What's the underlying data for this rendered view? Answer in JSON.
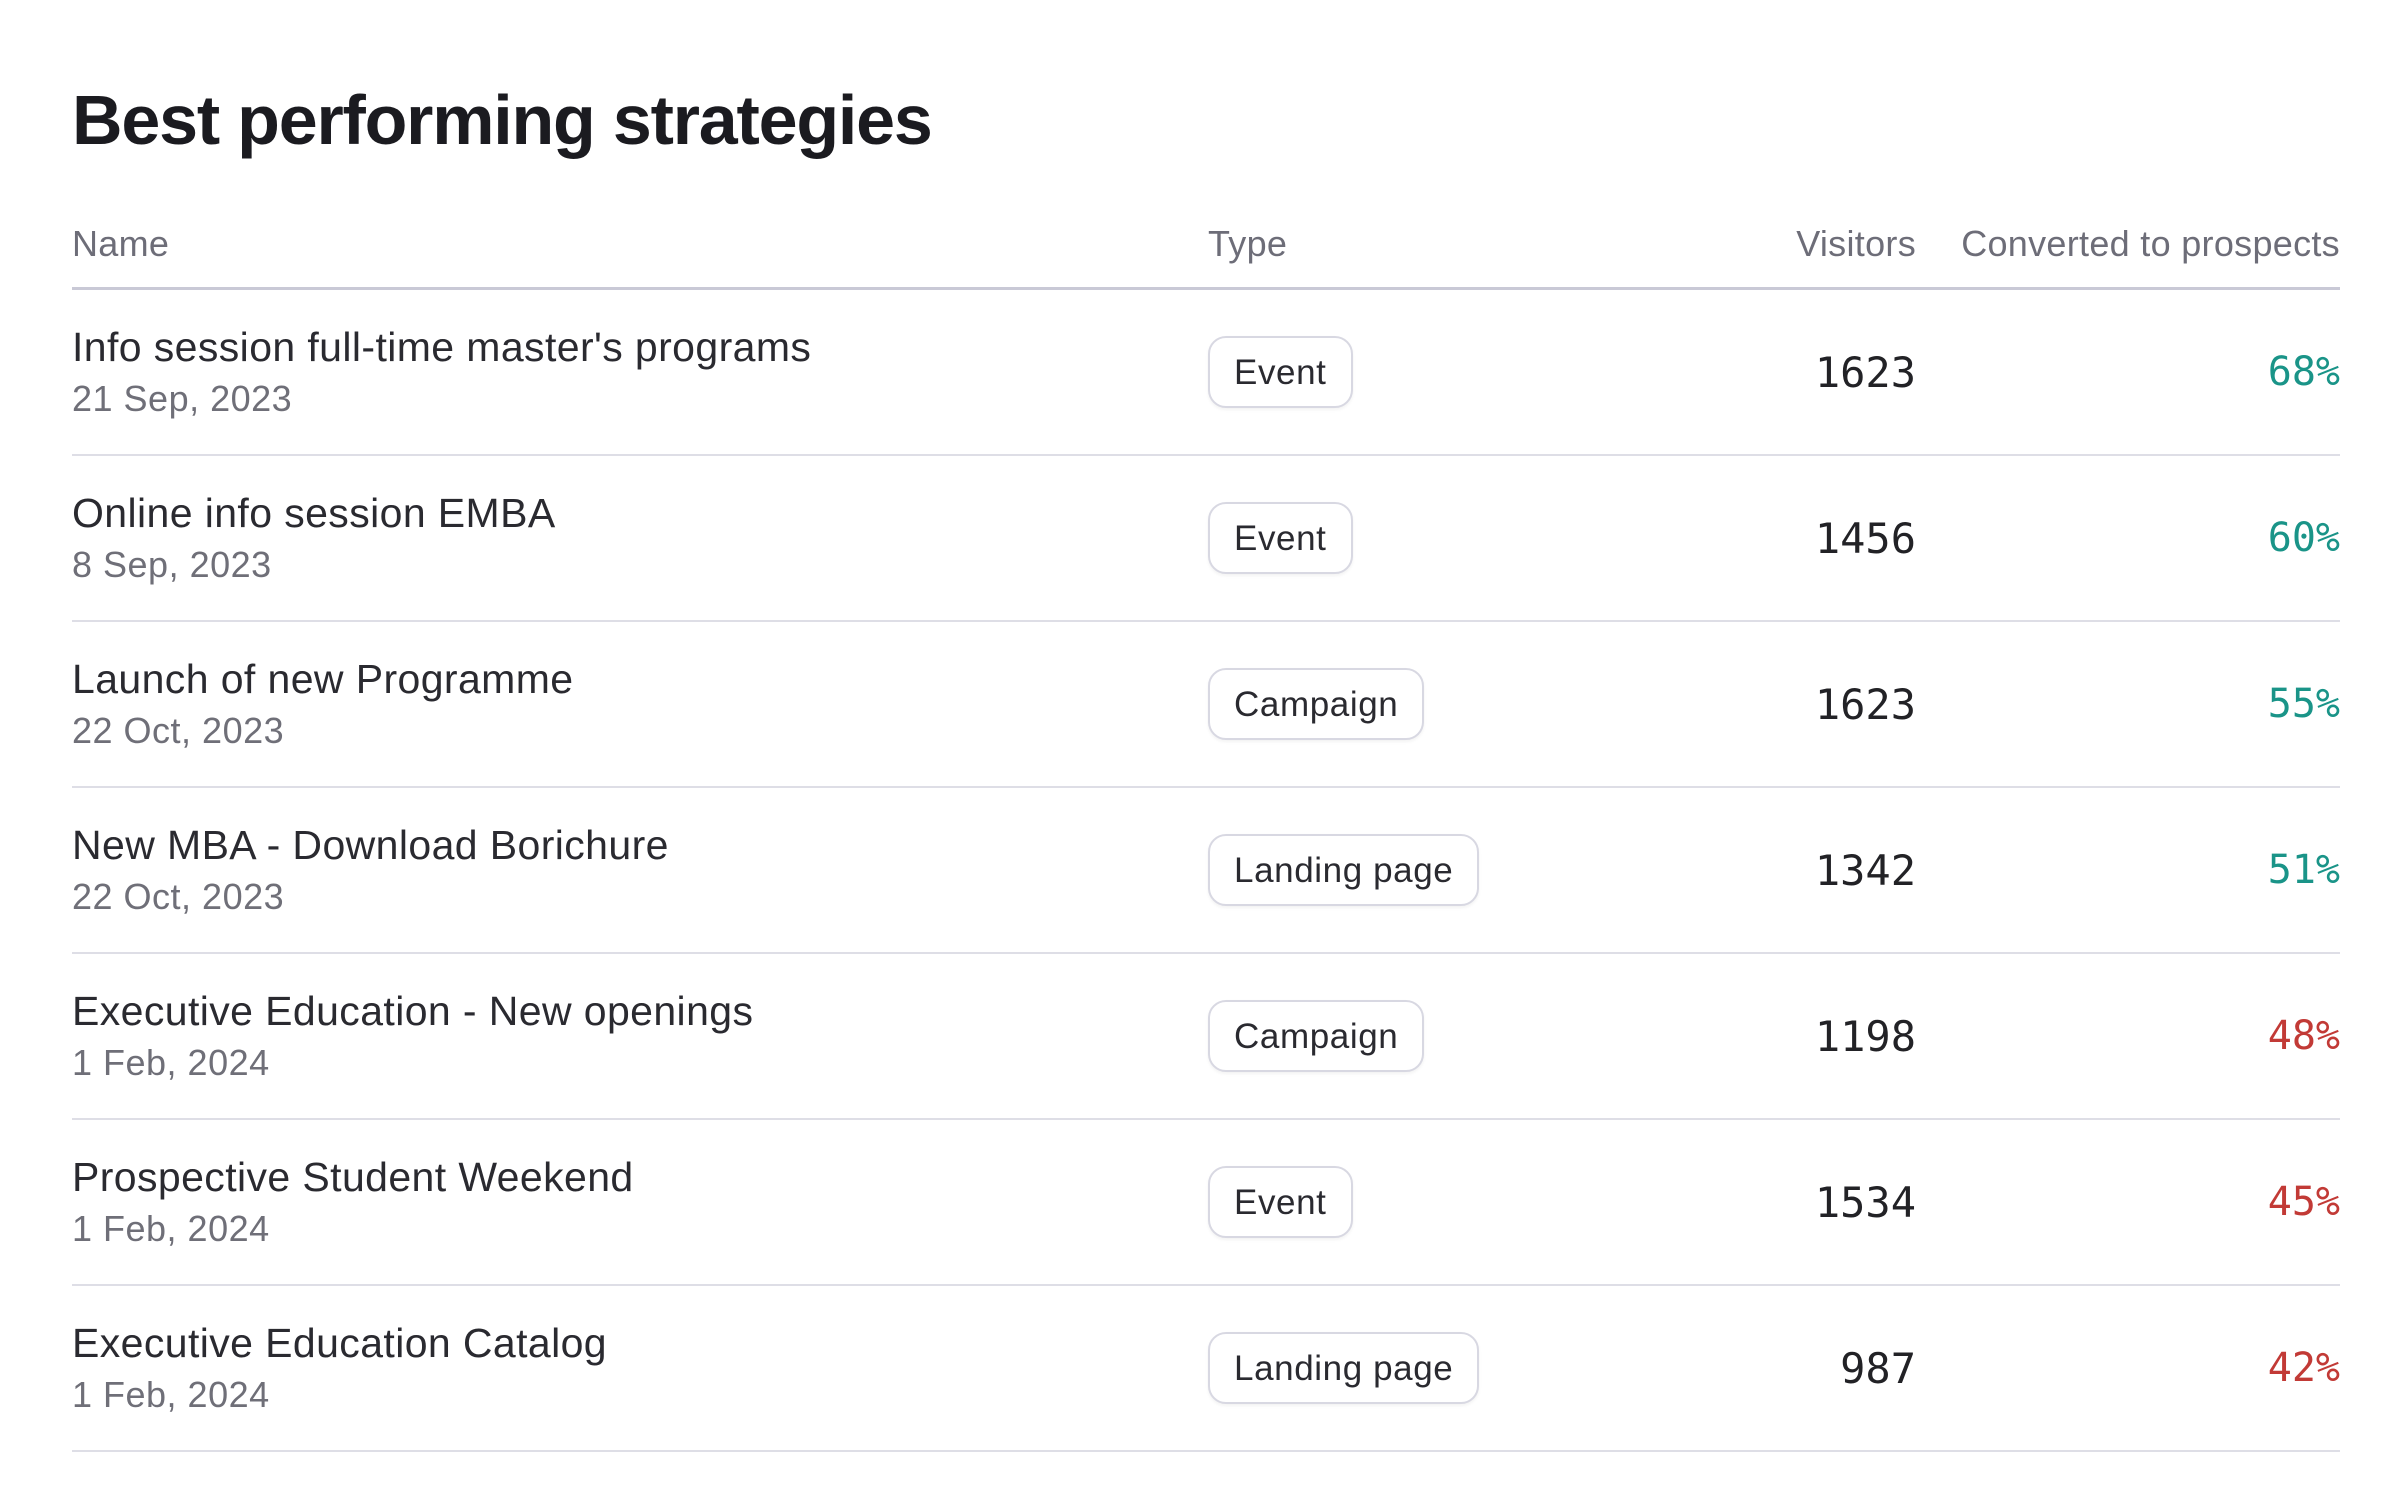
{
  "title": "Best performing strategies",
  "columns": {
    "name": "Name",
    "type": "Type",
    "visitors": "Visitors",
    "converted": "Converted to prospects"
  },
  "colors": {
    "positive": "#1a9488",
    "negative": "#c23a36"
  },
  "rows": [
    {
      "name": "Info session full-time master's programs",
      "date": "21 Sep, 2023",
      "type": "Event",
      "visitors": "1623",
      "converted": "68%",
      "status": "positive"
    },
    {
      "name": "Online info session EMBA",
      "date": "8 Sep, 2023",
      "type": "Event",
      "visitors": "1456",
      "converted": "60%",
      "status": "positive"
    },
    {
      "name": "Launch of new Programme",
      "date": "22 Oct, 2023",
      "type": "Campaign",
      "visitors": "1623",
      "converted": "55%",
      "status": "positive"
    },
    {
      "name": "New MBA - Download Borichure",
      "date": "22 Oct, 2023",
      "type": "Landing page",
      "visitors": "1342",
      "converted": "51%",
      "status": "positive"
    },
    {
      "name": "Executive Education - New openings",
      "date": "1 Feb, 2024",
      "type": "Campaign",
      "visitors": "1198",
      "converted": "48%",
      "status": "negative"
    },
    {
      "name": "Prospective Student Weekend",
      "date": "1 Feb, 2024",
      "type": "Event",
      "visitors": "1534",
      "converted": "45%",
      "status": "negative"
    },
    {
      "name": "Executive Education Catalog",
      "date": "1 Feb, 2024",
      "type": "Landing page",
      "visitors": "987",
      "converted": "42%",
      "status": "negative"
    }
  ]
}
